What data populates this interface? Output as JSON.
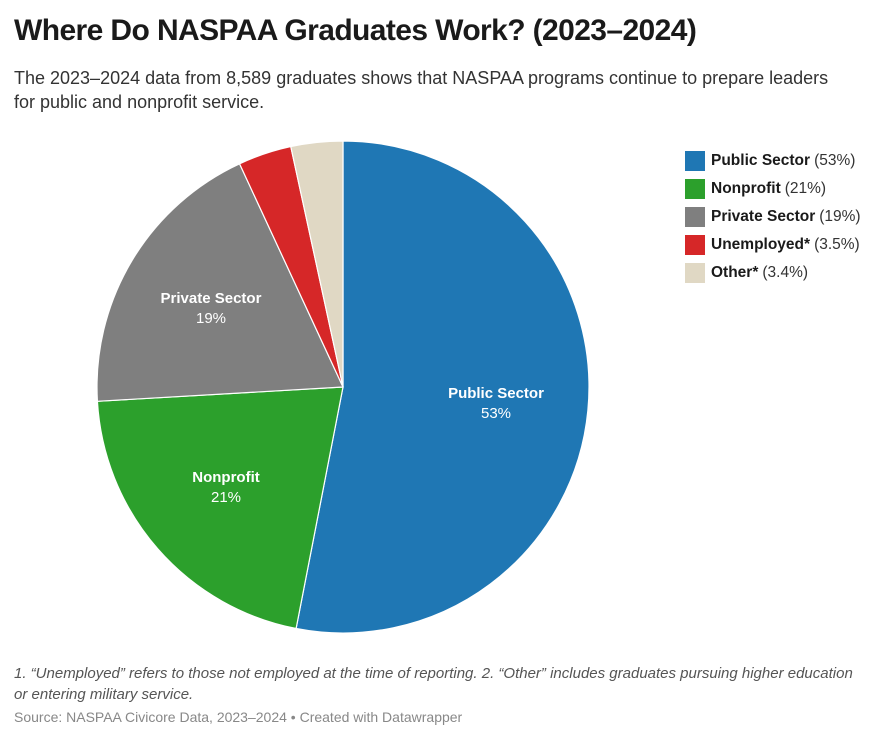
{
  "header": {
    "title": "Where Do NASPAA Graduates Work? (2023–2024)",
    "subtitle": "The 2023–2024 data from 8,589 graduates shows that NASPAA programs continue to prepare leaders for public and nonprofit service."
  },
  "legend": [
    {
      "name": "Public Sector",
      "pct": "(53%)",
      "color": "#1f77b4"
    },
    {
      "name": "Nonprofit",
      "pct": "(21%)",
      "color": "#2ca02c"
    },
    {
      "name": "Private Sector",
      "pct": "(19%)",
      "color": "#7f7f7f"
    },
    {
      "name": "Unemployed*",
      "pct": "(3.5%)",
      "color": "#d62728"
    },
    {
      "name": "Other*",
      "pct": "(3.4%)",
      "color": "#e0d8c4"
    }
  ],
  "slice_labels": {
    "public": {
      "name": "Public Sector",
      "value": "53%"
    },
    "nonprofit": {
      "name": "Nonprofit",
      "value": "21%"
    },
    "private": {
      "name": "Private Sector",
      "value": "19%"
    }
  },
  "footer": {
    "notes": "1. “Unemployed” refers to those not employed at the time of reporting. 2. “Other” includes graduates pursuing higher education or entering military service.",
    "source": "Source: NASPAA Civicore Data, 2023–2024 • Created with Datawrapper"
  },
  "chart_data": {
    "type": "pie",
    "title": "Where Do NASPAA Graduates Work? (2023–2024)",
    "subtitle": "The 2023–2024 data from 8,589 graduates shows that NASPAA programs continue to prepare leaders for public and nonprofit service.",
    "categories": [
      "Public Sector",
      "Nonprofit",
      "Private Sector",
      "Unemployed*",
      "Other*"
    ],
    "values": [
      53,
      21,
      19,
      3.5,
      3.4
    ],
    "colors": [
      "#1f77b4",
      "#2ca02c",
      "#7f7f7f",
      "#d62728",
      "#e0d8c4"
    ],
    "legend_position": "right",
    "start_angle": "12 o'clock, clockwise",
    "notes": "1. “Unemployed” refers to those not employed at the time of reporting. 2. “Other” includes graduates pursuing higher education or entering military service.",
    "source": "NASPAA Civicore Data, 2023–2024"
  }
}
